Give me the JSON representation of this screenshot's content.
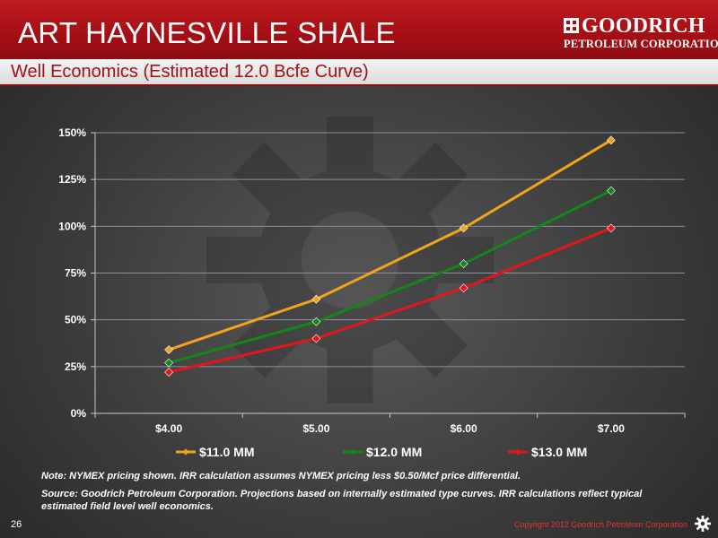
{
  "header": {
    "title": "ART HAYNESVILLE SHALE",
    "subtitle": "Well Economics (Estimated 12.0 Bcfe Curve)"
  },
  "logo": {
    "name": "GOODRICH",
    "sub": "PETROLEUM CORPORATION",
    "icon": "goodrich-logo-icon"
  },
  "chart_data": {
    "type": "line",
    "categories": [
      "$4.00",
      "$5.00",
      "$6.00",
      "$7.00"
    ],
    "series": [
      {
        "name": "$11.0 MM",
        "color": "#f2a31c",
        "values": [
          34,
          61,
          99,
          146
        ]
      },
      {
        "name": "$12.0 MM",
        "color": "#15861a",
        "values": [
          27,
          49,
          80,
          119
        ]
      },
      {
        "name": "$13.0 MM",
        "color": "#e3161c",
        "values": [
          22,
          40,
          67,
          99
        ]
      }
    ],
    "yticks": [
      "0%",
      "25%",
      "50%",
      "75%",
      "100%",
      "125%",
      "150%"
    ],
    "ylim": [
      0,
      150
    ],
    "grid": true,
    "legend": "bottom"
  },
  "notes": {
    "note": "Note: NYMEX pricing shown.  IRR calculation assumes NYMEX pricing less $0.50/Mcf price differential.",
    "source": "Source: Goodrich Petroleum Corporation. Projections based on internally estimated type curves.  IRR calculations reflect typical estimated field level well economics."
  },
  "footer": {
    "page_number": "26",
    "copyright": "Copyright 2012 Goodrich Petroleum Corporation",
    "icon": "gear-icon"
  }
}
